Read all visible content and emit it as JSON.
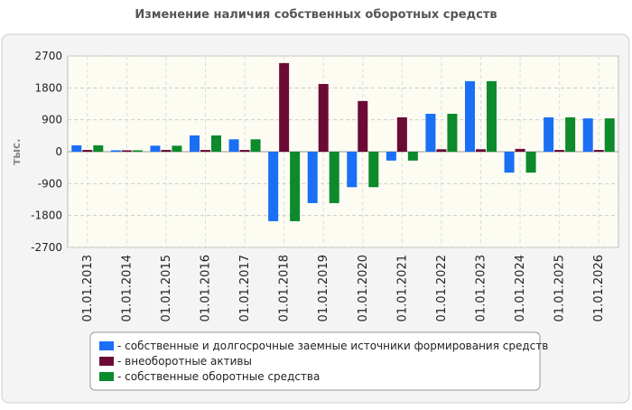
{
  "chart_data": {
    "type": "bar",
    "title": "Изменение наличия собственных оборотных средств",
    "y_label": "тыс.",
    "categories": [
      "01.01.2013",
      "01.01.2014",
      "01.01.2015",
      "01.01.2016",
      "01.01.2017",
      "01.01.2018",
      "01.01.2019",
      "01.01.2020",
      "01.01.2021",
      "01.01.2022",
      "01.01.2023",
      "01.01.2024",
      "01.01.2025",
      "01.01.2026"
    ],
    "series": [
      {
        "name": "- собственные и долгосрочные заемные источники формирования средств",
        "color": "#1a6ff5",
        "values": [
          180,
          40,
          170,
          460,
          350,
          -1960,
          -1450,
          -1000,
          -250,
          1070,
          1990,
          -590,
          970,
          940
        ]
      },
      {
        "name": "- внеоборотные активы",
        "color": "#6b0a35",
        "values": [
          50,
          40,
          50,
          50,
          50,
          2500,
          1910,
          1430,
          970,
          70,
          70,
          80,
          50,
          50
        ]
      },
      {
        "name": "- собственные оборотные средства",
        "color": "#0c8a2c",
        "values": [
          180,
          40,
          170,
          460,
          350,
          -1960,
          -1450,
          -1000,
          -250,
          1070,
          1990,
          -590,
          970,
          940
        ]
      }
    ],
    "ylim": [
      -2700,
      2700
    ],
    "yticks": [
      -2700,
      -1800,
      -900,
      0,
      900,
      1800,
      2700
    ],
    "grid": true,
    "legend": "bottom"
  }
}
